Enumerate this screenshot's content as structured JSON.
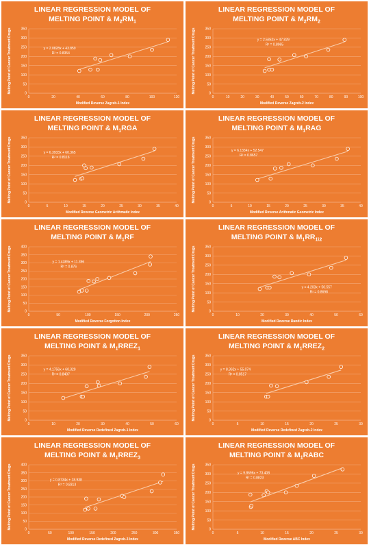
{
  "chart_data": [
    {
      "type": "scatter",
      "title_line1": "LINEAR REGRESSION MODEL OF",
      "title_line2": "MELTING POINT & M",
      "title_sub": "2",
      "title_suffix": "RM",
      "title_suffix_sub": "1",
      "xlabel": "Modified Reverse Zagreb-1 Index",
      "ylabel": "Melting Point of Cancer Treatment Drugs",
      "xlim": [
        0,
        120
      ],
      "xticks": [
        0,
        20,
        40,
        60,
        80,
        100,
        120
      ],
      "ylim": [
        0,
        350
      ],
      "yticks": [
        0,
        50,
        100,
        150,
        200,
        250,
        300,
        350
      ],
      "points": [
        [
          41,
          121
        ],
        [
          50,
          128
        ],
        [
          54,
          188
        ],
        [
          56,
          128
        ],
        [
          58,
          180
        ],
        [
          67,
          207
        ],
        [
          82,
          200
        ],
        [
          100,
          236
        ],
        [
          113,
          290
        ]
      ],
      "trend": {
        "slope": 2.0828,
        "intercept": 43.859
      },
      "equation": "y = 2.0828x + 43.859",
      "r2": "R² = 0.8354",
      "label_pos": [
        12,
        238
      ]
    },
    {
      "type": "scatter",
      "title_line1": "LINEAR REGRESSION MODEL OF",
      "title_line2": "MELTING POINT & M",
      "title_sub": "2",
      "title_suffix": "RM",
      "title_suffix_sub": "2",
      "xlabel": "Modified Reverse Zagreb-2 Index",
      "ylabel": "Melting Point of Cancer Treatment Drugs",
      "xlim": [
        0,
        100
      ],
      "xticks": [
        0,
        10,
        20,
        30,
        40,
        50,
        60,
        70,
        80,
        90,
        100
      ],
      "ylim": [
        0,
        350
      ],
      "yticks": [
        0,
        50,
        100,
        150,
        200,
        250,
        300,
        350
      ],
      "points": [
        [
          35,
          121
        ],
        [
          38,
          128
        ],
        [
          38,
          185
        ],
        [
          40,
          128
        ],
        [
          45,
          183
        ],
        [
          55,
          207
        ],
        [
          63,
          200
        ],
        [
          78,
          236
        ],
        [
          89,
          290
        ]
      ],
      "trend": {
        "slope": 2.5852,
        "intercept": 47.829
      },
      "equation": "y = 2.5852x + 47.829",
      "r2": "R² = 0.8965",
      "label_pos": [
        30,
        285
      ]
    },
    {
      "type": "scatter",
      "title_line1": "LINEAR REGRESSION MODEL OF",
      "title_line2": "MELTING POINT & M",
      "title_sub": "1",
      "title_suffix": "RGA",
      "title_suffix_sub": "",
      "xlabel": "Modified Reverse Geometric Arithmatic Index",
      "ylabel": "Melting Point of Cancer Treatment Drugs",
      "xlim": [
        0,
        40
      ],
      "xticks": [
        0,
        5,
        10,
        15,
        20,
        25,
        30,
        35,
        40
      ],
      "ylim": [
        0,
        350
      ],
      "yticks": [
        0,
        50,
        100,
        150,
        200,
        250,
        300,
        350
      ],
      "points": [
        [
          12.5,
          121
        ],
        [
          14.2,
          128
        ],
        [
          14.5,
          130
        ],
        [
          15,
          200
        ],
        [
          15.4,
          185
        ],
        [
          17,
          188
        ],
        [
          24.5,
          207
        ],
        [
          31,
          236
        ],
        [
          34,
          290
        ]
      ],
      "trend": {
        "slope": 6.3933,
        "intercept": 60.365
      },
      "equation": "y = 6.3933x + 60.365",
      "r2": "R² = 0.8116",
      "label_pos": [
        4,
        265
      ]
    },
    {
      "type": "scatter",
      "title_line1": "LINEAR REGRESSION MODEL OF",
      "title_line2": "MELTING POINT & M",
      "title_sub": "1",
      "title_suffix": "RAG",
      "title_suffix_sub": "",
      "xlabel": "Modified Reverse  Arithmatic Geometric Index",
      "ylabel": "Melting Point of Cancer Treatment Drugs",
      "xlim": [
        0,
        40
      ],
      "xticks": [
        0,
        5,
        10,
        15,
        20,
        25,
        30,
        35,
        40
      ],
      "ylim": [
        0,
        350
      ],
      "yticks": [
        0,
        50,
        100,
        150,
        200,
        250,
        300,
        350
      ],
      "points": [
        [
          12,
          121
        ],
        [
          15.6,
          128
        ],
        [
          16.8,
          183
        ],
        [
          18.5,
          187
        ],
        [
          20.5,
          207
        ],
        [
          27,
          200
        ],
        [
          33.5,
          236
        ],
        [
          36.5,
          290
        ]
      ],
      "trend": {
        "slope": 6.1334,
        "intercept": 52.547
      },
      "equation": "y = 6.1334x + 52.547",
      "r2": "R² = 0.8657",
      "label_pos": [
        5,
        275
      ]
    },
    {
      "type": "scatter",
      "title_line1": "LINEAR REGRESSION MODEL OF",
      "title_line2": "MELTING POINT & M",
      "title_sub": "1",
      "title_suffix": "RF",
      "title_suffix_sub": "",
      "xlabel": "Modified Reverse Forgotton Index",
      "ylabel": "Melting Point of Cancer Treatment Drugs",
      "xlim": [
        0,
        250
      ],
      "xticks": [
        0,
        50,
        100,
        150,
        200,
        250
      ],
      "ylim": [
        0,
        400
      ],
      "yticks": [
        0,
        50,
        100,
        150,
        200,
        250,
        300,
        350,
        400
      ],
      "points": [
        [
          85,
          121
        ],
        [
          90,
          128
        ],
        [
          98,
          128
        ],
        [
          101,
          188
        ],
        [
          110,
          185
        ],
        [
          116,
          200
        ],
        [
          136,
          207
        ],
        [
          180,
          236
        ],
        [
          205,
          290
        ],
        [
          206,
          340
        ]
      ],
      "trend": {
        "slope": 1.4389,
        "intercept": 11.396
      },
      "equation": "y = 1.4389x + 11.396",
      "r2": "R² = 0.876",
      "label_pos": [
        40,
        300
      ]
    },
    {
      "type": "scatter",
      "title_line1": "LINEAR REGRESSION MODEL OF",
      "title_line2": "MELTING POINT & M",
      "title_sub": "1",
      "title_suffix": "RR",
      "title_suffix_sub": "1\\2",
      "xlabel": "Modified Reverse Randic Index",
      "ylabel": "Melting Point of Cancer Treatment Drugs",
      "xlim": [
        0,
        60
      ],
      "xticks": [
        0,
        10,
        20,
        30,
        40,
        50,
        60
      ],
      "ylim": [
        0,
        350
      ],
      "yticks": [
        0,
        50,
        100,
        150,
        200,
        250,
        300,
        350
      ],
      "points": [
        [
          19,
          121
        ],
        [
          22,
          128
        ],
        [
          23,
          128
        ],
        [
          25,
          188
        ],
        [
          27,
          185
        ],
        [
          32,
          207
        ],
        [
          39,
          200
        ],
        [
          48,
          236
        ],
        [
          54,
          290
        ]
      ],
      "trend": {
        "slope": 4.203,
        "intercept": 50.557
      },
      "equation": "y = 4.203x + 50.557",
      "r2": "R² = 0.8698",
      "label_pos": [
        36,
        125
      ]
    },
    {
      "type": "scatter",
      "title_line1": "LINEAR REGRESSION MODEL OF",
      "title_line2": "MELTING POINT & M",
      "title_sub": "1",
      "title_suffix": "RREZ",
      "title_suffix_sub": "1",
      "xlabel": "Modified Reverse Redefined Zagreb-1 Index",
      "ylabel": "Melting Point of Cancer Treatment Drugs",
      "xlim": [
        0,
        60
      ],
      "xticks": [
        0,
        10,
        20,
        30,
        40,
        50,
        60
      ],
      "ylim": [
        0,
        350
      ],
      "yticks": [
        0,
        50,
        100,
        150,
        200,
        250,
        300,
        350
      ],
      "points": [
        [
          14,
          121
        ],
        [
          21.5,
          128
        ],
        [
          22,
          128
        ],
        [
          23.5,
          185
        ],
        [
          28,
          207
        ],
        [
          28.5,
          188
        ],
        [
          37,
          200
        ],
        [
          47.5,
          236
        ],
        [
          49,
          290
        ]
      ],
      "trend": {
        "slope": 4.1756,
        "intercept": 60.329
      },
      "equation": "y = 4.1756x + 60.329",
      "r2": "R² = 0.8407",
      "label_pos": [
        6,
        270
      ]
    },
    {
      "type": "scatter",
      "title_line1": "LINEAR REGRESSION MODEL OF",
      "title_line2": "MELTING POINT & M",
      "title_sub": "1",
      "title_suffix": "RREZ",
      "title_suffix_sub": "2",
      "xlabel": "Modified Reverse Redefined Zagreb-2 Index",
      "ylabel": "Melting Point of Cancer Treatment Drugs",
      "xlim": [
        0,
        30
      ],
      "xticks": [
        0,
        5,
        10,
        15,
        20,
        25,
        30
      ],
      "ylim": [
        0,
        350
      ],
      "yticks": [
        0,
        50,
        100,
        150,
        200,
        250,
        300,
        350
      ],
      "points": [
        [
          10.8,
          128
        ],
        [
          11.2,
          128
        ],
        [
          11.8,
          188
        ],
        [
          13,
          185
        ],
        [
          19,
          207
        ],
        [
          23.5,
          236
        ],
        [
          26,
          290
        ]
      ],
      "trend": {
        "slope": 8.362,
        "intercept": 55.074
      },
      "equation": "y = 8.362x + 55.074",
      "r2": "R² = 0.8517",
      "label_pos": [
        1.5,
        270
      ]
    },
    {
      "type": "scatter",
      "title_line1": "LINEAR REGRESSION MODEL OF",
      "title_line2": "MELTING POINT & M",
      "title_sub": "1",
      "title_suffix": "RREZ",
      "title_suffix_sub": "3",
      "xlabel": "Modified Reverse Redefined Zagreb-3 Index",
      "ylabel": "Melting Point of Cancer Treatment Drugs",
      "xlim": [
        0,
        350
      ],
      "xticks": [
        0,
        50,
        100,
        150,
        200,
        250,
        300,
        350
      ],
      "ylim": [
        0,
        400
      ],
      "yticks": [
        0,
        50,
        100,
        150,
        200,
        250,
        300,
        350,
        400
      ],
      "points": [
        [
          133,
          121
        ],
        [
          136,
          190
        ],
        [
          141,
          128
        ],
        [
          158,
          128
        ],
        [
          166,
          185
        ],
        [
          221,
          207
        ],
        [
          226,
          200
        ],
        [
          291,
          236
        ],
        [
          311,
          290
        ],
        [
          318,
          340
        ]
      ],
      "trend": {
        "slope": 0.8734,
        "intercept": 18.938
      },
      "equation": "y = 0.8734x + 18.938",
      "r2": "R² = 0.8313",
      "label_pos": [
        50,
        300
      ]
    },
    {
      "type": "scatter",
      "title_line1": "LINEAR REGRESSION MODEL OF",
      "title_line2": "MELTING POINT & M",
      "title_sub": "1",
      "title_suffix": "RABC",
      "title_suffix_sub": "",
      "xlabel": "Modified Reverse ABC Index",
      "ylabel": "Melting Point of Cancer Treatment Drugs",
      "xlim": [
        0,
        30
      ],
      "xticks": [
        0,
        5,
        10,
        15,
        20,
        25,
        30
      ],
      "ylim": [
        0,
        350
      ],
      "yticks": [
        0,
        50,
        100,
        150,
        200,
        250,
        300,
        350
      ],
      "points": [
        [
          7.7,
          121
        ],
        [
          7.8,
          128
        ],
        [
          7.6,
          188
        ],
        [
          10.3,
          185
        ],
        [
          10.9,
          207
        ],
        [
          11.2,
          200
        ],
        [
          14.8,
          200
        ],
        [
          17,
          236
        ],
        [
          20.5,
          290
        ],
        [
          26.3,
          325
        ]
      ],
      "trend": {
        "slope": 9.8696,
        "intercept": 73.408
      },
      "equation": "y = 9.8696x + 73.408",
      "r2": "R² = 0.8823",
      "label_pos": [
        5,
        300
      ]
    }
  ]
}
